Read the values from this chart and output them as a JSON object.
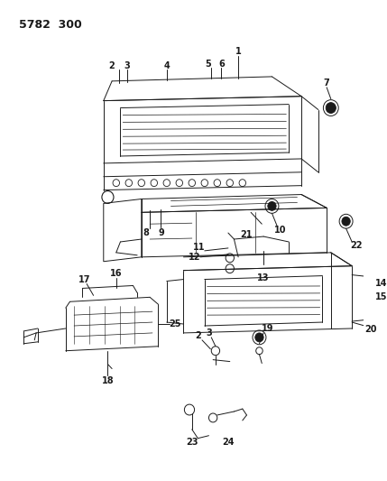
{
  "title": "5782  300",
  "background_color": "#ffffff",
  "text_color": "#1a1a1a",
  "title_fontsize": 9,
  "label_fontsize": 7,
  "fig_width": 4.29,
  "fig_height": 5.33,
  "dpi": 100
}
